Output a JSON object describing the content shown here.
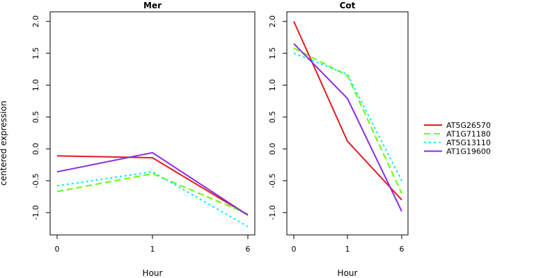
{
  "figure": {
    "ylabel": "centered expression",
    "xlabel": "Hour"
  },
  "legend": {
    "placement": "right",
    "entries": [
      "AT5G26570",
      "AT1G71180",
      "AT5G13110",
      "AT1G19600"
    ]
  },
  "series_styles": [
    {
      "name": "AT5G26570",
      "color": "#e31a1c",
      "dash": "solid"
    },
    {
      "name": "AT1G71180",
      "color": "#66ff00",
      "dash": "dashed"
    },
    {
      "name": "AT5G13110",
      "color": "#00eeff",
      "dash": "dotted"
    },
    {
      "name": "AT1G19600",
      "color": "#8a2be2",
      "dash": "solid"
    }
  ],
  "chart_data": [
    {
      "type": "line",
      "title": "Mer",
      "xlabel": "Hour",
      "ylabel": "centered expression",
      "x": [
        "0",
        "1",
        "6"
      ],
      "ylim": [
        -1.35,
        2.15
      ],
      "yticks": [
        "-1.0",
        "-0.5",
        "0.0",
        "0.5",
        "1.0",
        "1.5",
        "2.0"
      ],
      "grid": false,
      "series": [
        {
          "name": "AT5G26570",
          "values": [
            -0.11,
            -0.14,
            -1.04
          ]
        },
        {
          "name": "AT1G71180",
          "values": [
            -0.67,
            -0.39,
            -1.02
          ]
        },
        {
          "name": "AT5G13110",
          "values": [
            -0.58,
            -0.36,
            -1.22
          ]
        },
        {
          "name": "AT1G19600",
          "values": [
            -0.36,
            -0.06,
            -1.04
          ]
        }
      ]
    },
    {
      "type": "line",
      "title": "Cot",
      "xlabel": "Hour",
      "ylabel": "",
      "x": [
        "0",
        "1",
        "6"
      ],
      "ylim": [
        -1.35,
        2.15
      ],
      "yticks": [
        "-1.0",
        "-0.5",
        "0.0",
        "0.5",
        "1.0",
        "1.5",
        "2.0"
      ],
      "grid": false,
      "series": [
        {
          "name": "AT5G26570",
          "values": [
            2.0,
            0.12,
            -0.8
          ]
        },
        {
          "name": "AT1G71180",
          "values": [
            1.58,
            1.15,
            -0.7
          ]
        },
        {
          "name": "AT5G13110",
          "values": [
            1.5,
            1.17,
            -0.5
          ]
        },
        {
          "name": "AT1G19600",
          "values": [
            1.65,
            0.79,
            -0.98
          ]
        }
      ]
    }
  ]
}
